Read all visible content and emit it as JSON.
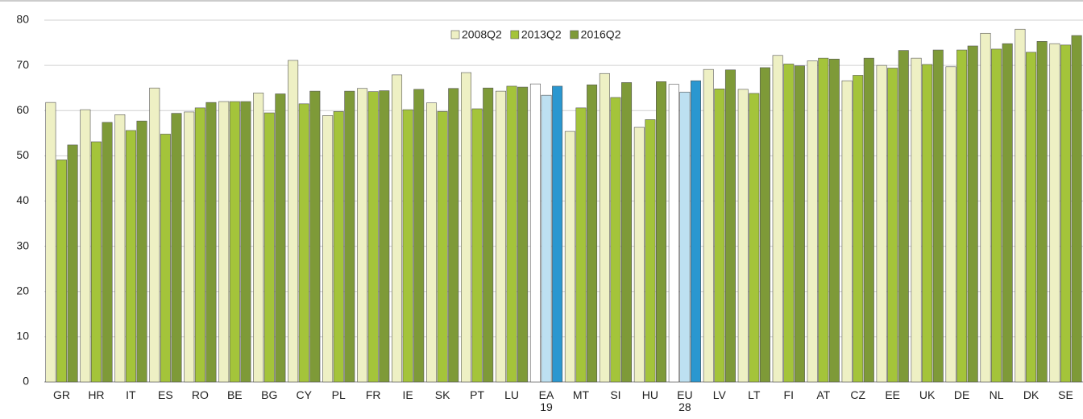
{
  "chart_data": {
    "type": "bar",
    "categories": [
      "GR",
      "HR",
      "IT",
      "ES",
      "RO",
      "BE",
      "BG",
      "CY",
      "PL",
      "FR",
      "IE",
      "SK",
      "PT",
      "LU",
      "EA 19",
      "MT",
      "SI",
      "HU",
      "EU 28",
      "LV",
      "LT",
      "FI",
      "AT",
      "CZ",
      "EE",
      "UK",
      "DE",
      "NL",
      "DK",
      "SE"
    ],
    "series": [
      {
        "name": "2008Q2",
        "color": "#eef0c4",
        "highlight_color": "#ffffff",
        "values": [
          61.8,
          60.2,
          59.1,
          65.0,
          59.7,
          62.0,
          63.9,
          71.1,
          58.9,
          64.9,
          67.9,
          61.7,
          68.4,
          64.3,
          65.9,
          55.4,
          68.2,
          56.3,
          65.8,
          69.1,
          64.7,
          72.2,
          71.0,
          66.6,
          70.0,
          71.6,
          69.7,
          77.1,
          78.0,
          74.8
        ]
      },
      {
        "name": "2013Q2",
        "color": "#a4c43a",
        "highlight_color": "#bde0f1",
        "values": [
          49.1,
          53.1,
          55.6,
          54.8,
          60.6,
          62.0,
          59.5,
          61.5,
          59.8,
          64.2,
          60.2,
          59.8,
          60.4,
          65.4,
          63.4,
          60.6,
          62.9,
          58.0,
          64.1,
          64.8,
          63.8,
          70.3,
          71.6,
          67.8,
          69.4,
          70.2,
          73.4,
          73.6,
          72.9,
          74.5
        ]
      },
      {
        "name": "2016Q2",
        "color": "#7e9a38",
        "highlight_color": "#2a97d0",
        "values": [
          52.4,
          57.4,
          57.7,
          59.4,
          61.8,
          62.0,
          63.7,
          64.3,
          64.3,
          64.4,
          64.7,
          64.9,
          65.0,
          65.2,
          65.4,
          65.7,
          66.2,
          66.4,
          66.6,
          69.0,
          69.5,
          69.9,
          71.4,
          71.6,
          73.3,
          73.4,
          74.3,
          74.8,
          75.3,
          76.6
        ]
      }
    ],
    "highlighted": [
      "EA 19",
      "EU 28"
    ],
    "ylim": [
      0,
      80
    ],
    "yticks": [
      0,
      10,
      20,
      30,
      40,
      50,
      60,
      70,
      80
    ],
    "grid": true,
    "legend": "top"
  }
}
